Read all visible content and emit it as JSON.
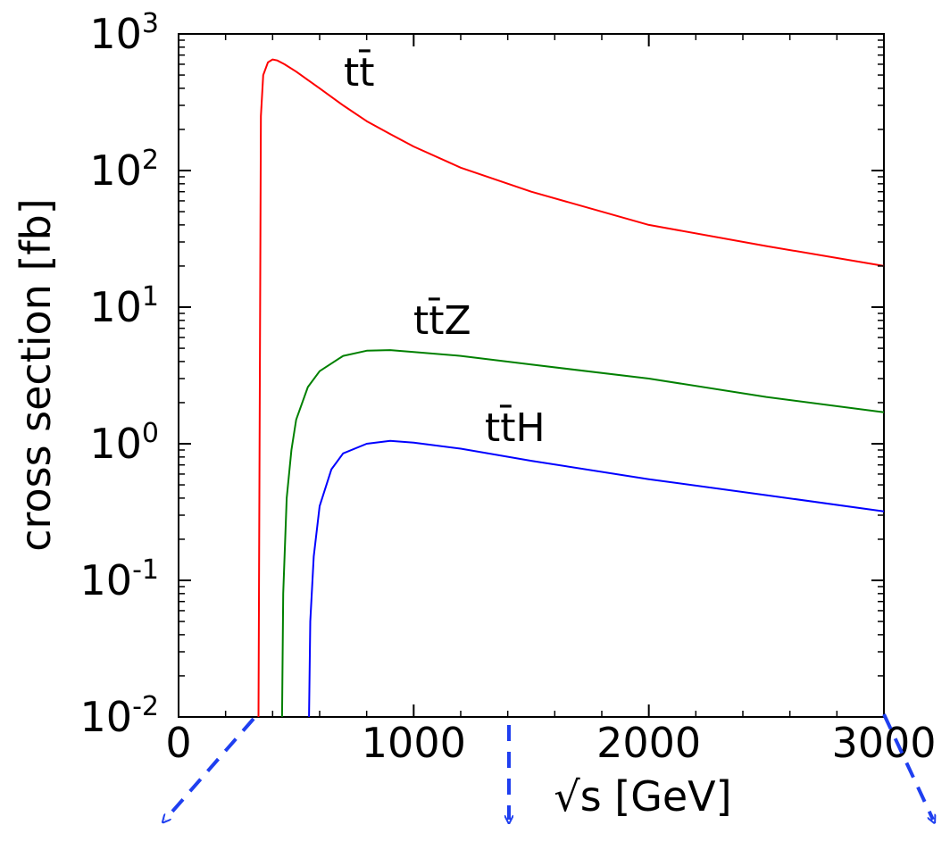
{
  "chart_data": {
    "type": "line",
    "xlabel": "√s [GeV]",
    "ylabel": "cross section [fb]",
    "xlim": [
      0,
      3000
    ],
    "ylim": [
      0.01,
      1000
    ],
    "yscale": "log",
    "grid": false,
    "legend": "none",
    "x_ticks": [
      {
        "value": 0,
        "label": "0"
      },
      {
        "value": 1000,
        "label": "1000"
      },
      {
        "value": 2000,
        "label": "2000"
      },
      {
        "value": 3000,
        "label": "3000"
      }
    ],
    "y_ticks": [
      {
        "value": 0.01,
        "base": "10",
        "exp": "-2"
      },
      {
        "value": 0.1,
        "base": "10",
        "exp": "-1"
      },
      {
        "value": 1,
        "base": "10",
        "exp": "0"
      },
      {
        "value": 10,
        "base": "10",
        "exp": "1"
      },
      {
        "value": 100,
        "base": "10",
        "exp": "2"
      },
      {
        "value": 1000,
        "base": "10",
        "exp": "3"
      }
    ],
    "series": [
      {
        "name": "tt̄",
        "color": "#ff0000",
        "x": [
          340,
          350,
          360,
          380,
          400,
          420,
          450,
          500,
          550,
          600,
          700,
          800,
          900,
          1000,
          1200,
          1500,
          2000,
          2500,
          3000
        ],
        "y": [
          0.01,
          250,
          500,
          620,
          650,
          640,
          600,
          530,
          460,
          400,
          300,
          230,
          185,
          150,
          105,
          70,
          40,
          28,
          20
        ]
      },
      {
        "name": "tt̄Z",
        "color": "#008000",
        "x": [
          440,
          445,
          460,
          480,
          500,
          550,
          600,
          700,
          800,
          900,
          1000,
          1200,
          1500,
          2000,
          2500,
          3000
        ],
        "y": [
          0.01,
          0.08,
          0.4,
          0.9,
          1.5,
          2.6,
          3.4,
          4.4,
          4.8,
          4.85,
          4.7,
          4.4,
          3.8,
          3.0,
          2.2,
          1.7
        ]
      },
      {
        "name": "tt̄H",
        "color": "#0000ff",
        "x": [
          555,
          560,
          575,
          600,
          650,
          700,
          800,
          900,
          1000,
          1200,
          1500,
          2000,
          2500,
          3000
        ],
        "y": [
          0.01,
          0.05,
          0.15,
          0.35,
          0.65,
          0.85,
          1.0,
          1.05,
          1.02,
          0.92,
          0.75,
          0.55,
          0.42,
          0.32
        ]
      }
    ],
    "annotations": {
      "arrow_color": "#1f3ff0"
    }
  }
}
